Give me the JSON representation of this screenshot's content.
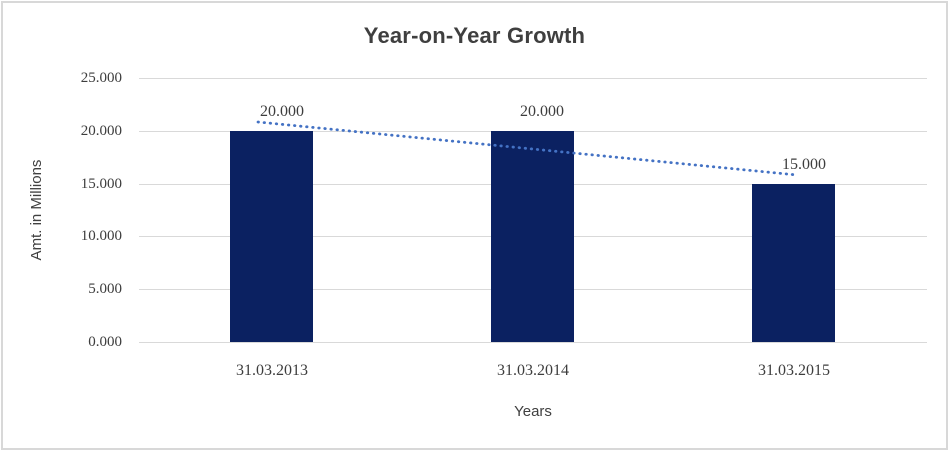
{
  "chart_data": {
    "type": "bar",
    "title": "Year-on-Year Growth",
    "xlabel": "Years",
    "ylabel": "Amt. in Millions",
    "categories": [
      "31.03.2013",
      "31.03.2014",
      "31.03.2015"
    ],
    "values": [
      20000,
      20000,
      15000
    ],
    "value_labels": [
      "20.000",
      "20.000",
      "15.000"
    ],
    "y_ticks": [
      "25.000",
      "20.000",
      "15.000",
      "10.000",
      "5.000",
      "0.000"
    ],
    "ylim": [
      0,
      25000
    ],
    "grid": true,
    "legend": false,
    "bar_color": "#0b2161",
    "gridline_color": "#d9d9d9",
    "trendline": {
      "type": "linear",
      "style": "dotted",
      "color": "#4472c4",
      "start_value": 20833,
      "end_value": 15833
    }
  }
}
